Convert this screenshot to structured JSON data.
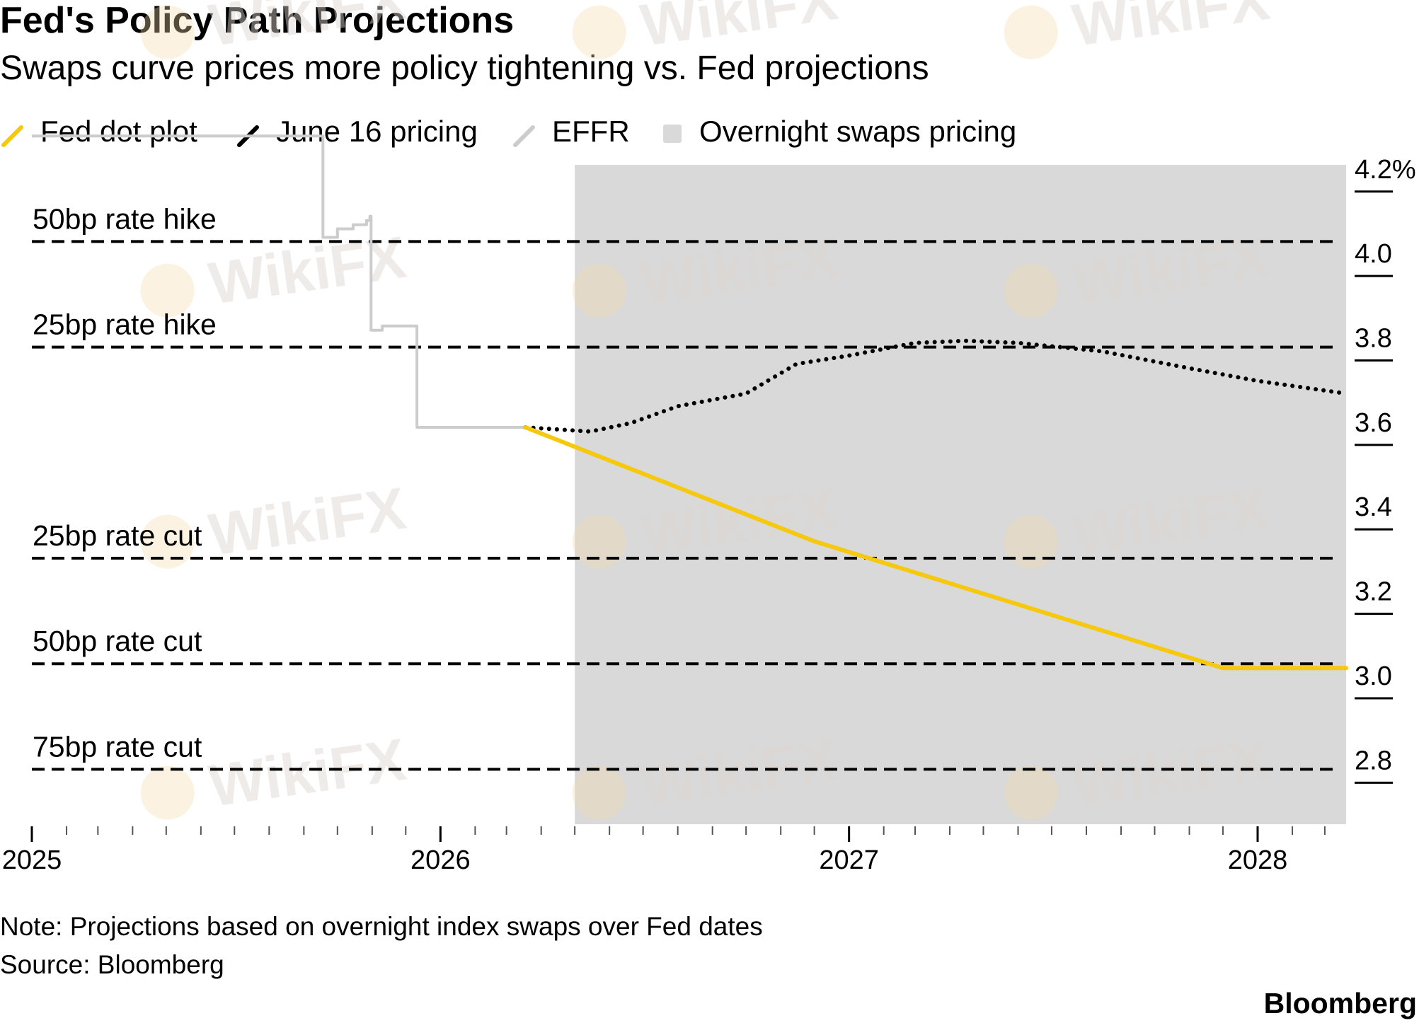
{
  "chart_data": {
    "type": "line",
    "title": "Fed's Policy Path Projections",
    "subtitle": "Swaps curve prices more policy tightening vs. Fed projections",
    "legend": [
      {
        "name": "Fed dot plot",
        "color": "#f6c90e",
        "icon": "diagonal-line-icon"
      },
      {
        "name": "June 16 pricing",
        "color": "#000000",
        "icon": "diagonal-line-icon"
      },
      {
        "name": "EFFR",
        "color": "#cccccc",
        "icon": "diagonal-line-icon"
      },
      {
        "name": "Overnight swaps pricing",
        "color": "#d9d9d9",
        "icon": "square-icon"
      }
    ],
    "legend_placement": "top-left",
    "x_axis": {
      "type": "date",
      "range": [
        "2025-01-01",
        "2028-03-20"
      ],
      "ticks": [
        "2025",
        "2026",
        "2027",
        "2028"
      ]
    },
    "y_axis": {
      "range": [
        2.7,
        4.26
      ],
      "position": "right",
      "ticks": [
        {
          "value": 4.2,
          "label": "4.2%"
        },
        {
          "value": 4.0,
          "label": "4.0"
        },
        {
          "value": 3.8,
          "label": "3.8"
        },
        {
          "value": 3.6,
          "label": "3.6"
        },
        {
          "value": 3.4,
          "label": "3.4"
        },
        {
          "value": 3.2,
          "label": "3.2"
        },
        {
          "value": 3.0,
          "label": "3.0"
        },
        {
          "value": 2.8,
          "label": "2.8"
        }
      ]
    },
    "shaded_region": {
      "label": "Overnight swaps pricing",
      "x_start": "2026-05-01",
      "x_end": "2028-03-20",
      "color": "#d9d9d9"
    },
    "reference_lines": [
      {
        "label": "50bp rate hike",
        "value": 4.08
      },
      {
        "label": "25bp rate hike",
        "value": 3.83
      },
      {
        "label": "25bp rate cut",
        "value": 3.33
      },
      {
        "label": "50bp rate cut",
        "value": 3.08
      },
      {
        "label": "75bp rate cut",
        "value": 2.83
      }
    ],
    "series": [
      {
        "name": "EFFR",
        "color": "#cccccc",
        "style": "step",
        "points": [
          [
            "2025-01-01",
            4.33
          ],
          [
            "2025-09-17",
            4.33
          ],
          [
            "2025-09-18",
            4.09
          ],
          [
            "2025-10-01",
            4.11
          ],
          [
            "2025-10-15",
            4.12
          ],
          [
            "2025-10-27",
            4.13
          ],
          [
            "2025-10-30",
            4.14
          ],
          [
            "2025-10-31",
            3.87
          ],
          [
            "2025-11-10",
            3.88
          ],
          [
            "2025-12-01",
            3.88
          ],
          [
            "2025-12-11",
            3.64
          ],
          [
            "2026-03-18",
            3.64
          ]
        ]
      },
      {
        "name": "June 16 pricing",
        "color": "#000000",
        "style": "dotted",
        "points": [
          [
            "2026-03-18",
            3.64
          ],
          [
            "2026-05-15",
            3.63
          ],
          [
            "2026-06-20",
            3.65
          ],
          [
            "2026-08-01",
            3.69
          ],
          [
            "2026-10-01",
            3.72
          ],
          [
            "2026-11-15",
            3.79
          ],
          [
            "2027-01-01",
            3.81
          ],
          [
            "2027-03-01",
            3.84
          ],
          [
            "2027-04-15",
            3.845
          ],
          [
            "2027-06-01",
            3.84
          ],
          [
            "2027-08-15",
            3.82
          ],
          [
            "2027-11-01",
            3.78
          ],
          [
            "2028-01-01",
            3.75
          ],
          [
            "2028-03-20",
            3.72
          ]
        ]
      },
      {
        "name": "Fed dot plot",
        "color": "#f6c90e",
        "style": "solid",
        "points": [
          [
            "2026-03-18",
            3.64
          ],
          [
            "2026-12-01",
            3.37
          ],
          [
            "2027-12-01",
            3.07
          ],
          [
            "2028-03-20",
            3.07
          ]
        ]
      }
    ]
  },
  "footer": {
    "note": "Note: Projections based on overnight index swaps over Fed dates",
    "source": "Source: Bloomberg",
    "brand": "Bloomberg"
  },
  "watermark": {
    "text": "WikiFX",
    "color": "#dcd5cf"
  }
}
